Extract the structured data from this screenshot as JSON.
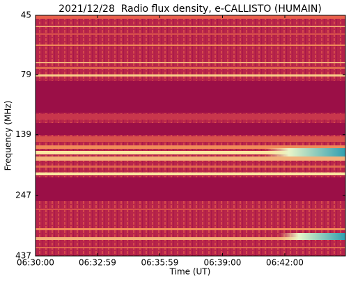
{
  "chart_data": {
    "type": "spectrogram",
    "title": "2021/12/28  Radio flux density, e-CALLISTO (HUMAIN)",
    "xlabel": "Time (UT)",
    "ylabel": "Frequency (MHz)",
    "xlim": [
      "06:30:00",
      "06:44:55"
    ],
    "xticks": [
      "06:30:00",
      "06:32:59",
      "06:35:59",
      "06:39:00",
      "06:42:00"
    ],
    "ylim": [
      437,
      45
    ],
    "yticks": [
      45,
      79,
      139,
      247,
      437
    ],
    "yscale": "log"
  }
}
